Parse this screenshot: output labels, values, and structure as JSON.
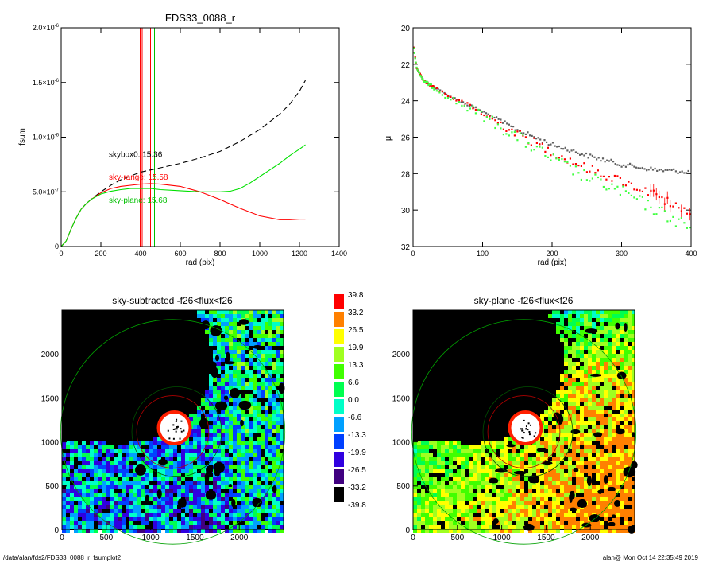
{
  "footer": {
    "path": "/data/alan/fds2/FDS33_0088_r_fsumplot2",
    "stamp": "alan@  Mon Oct 14 22:35:49 2019"
  },
  "colorbar": {
    "labels": [
      "39.8",
      "33.2",
      "26.5",
      "19.9",
      "13.3",
      "6.6",
      "0.0",
      "-6.6",
      "-13.3",
      "-19.9",
      "-26.5",
      "-33.2",
      "-39.8"
    ],
    "colors": [
      "#ff0000",
      "#ff8000",
      "#ffff00",
      "#a0ff20",
      "#40ff00",
      "#00ff50",
      "#00ffc8",
      "#00a0ff",
      "#0040ff",
      "#3000e0",
      "#400080",
      "#000000"
    ]
  },
  "chart_data": [
    {
      "id": "fsum",
      "type": "line",
      "title": "FDS33_0088_r",
      "xlabel": "rad (pix)",
      "ylabel": "fsum",
      "xlim": [
        0,
        1400
      ],
      "ylim": [
        0,
        2e-06
      ],
      "xticks": [
        0,
        200,
        400,
        600,
        800,
        1000,
        1200,
        1400
      ],
      "yticks": [
        {
          "v": 0,
          "base": "0",
          "exp": ""
        },
        {
          "v": 5e-07,
          "base": "5.0×10",
          "exp": "-7"
        },
        {
          "v": 1e-06,
          "base": "1.0×10",
          "exp": "-6"
        },
        {
          "v": 1.5e-06,
          "base": "1.5×10",
          "exp": "-6"
        },
        {
          "v": 2e-06,
          "base": "2.0×10",
          "exp": "-6"
        }
      ],
      "vlines": [
        {
          "x": 398,
          "color": "#ff0000"
        },
        {
          "x": 408,
          "color": "#ff0000"
        },
        {
          "x": 450,
          "color": "#ff0000"
        },
        {
          "x": 470,
          "color": "#00c000"
        }
      ],
      "annotations": [
        {
          "text": "skybox0: 15.36",
          "x": 240,
          "y": 8.2e-07,
          "color": "#000000"
        },
        {
          "text": "sky-range: 15.58",
          "x": 240,
          "y": 6.1e-07,
          "color": "#ff0000"
        },
        {
          "text": "sky-plane: 15.68",
          "x": 240,
          "y": 4e-07,
          "color": "#00c000"
        }
      ],
      "series": [
        {
          "color": "#000000",
          "dash": true,
          "x": [
            0,
            25,
            50,
            75,
            100,
            125,
            150,
            200,
            250,
            300,
            400,
            500,
            600,
            700,
            800,
            900,
            1000,
            1100,
            1150,
            1200,
            1230
          ],
          "y": [
            0,
            5e-08,
            1.6e-07,
            2.6e-07,
            3.4e-07,
            3.9e-07,
            4.3e-07,
            5e-07,
            5.6e-07,
            6.1e-07,
            6.8e-07,
            7.2e-07,
            7.6e-07,
            8.1e-07,
            8.7e-07,
            9.6e-07,
            1.07e-06,
            1.21e-06,
            1.3e-06,
            1.42e-06,
            1.52e-06
          ]
        },
        {
          "color": "#ff0000",
          "dash": false,
          "x": [
            0,
            25,
            50,
            75,
            100,
            125,
            150,
            200,
            250,
            300,
            350,
            400,
            450,
            500,
            600,
            700,
            800,
            900,
            1000,
            1100,
            1150,
            1200,
            1230
          ],
          "y": [
            0,
            5e-08,
            1.6e-07,
            2.6e-07,
            3.4e-07,
            3.9e-07,
            4.3e-07,
            4.9e-07,
            5.3e-07,
            5.5e-07,
            5.6e-07,
            5.7e-07,
            5.75e-07,
            5.7e-07,
            5.5e-07,
            5e-07,
            4.3e-07,
            3.5e-07,
            2.8e-07,
            2.45e-07,
            2.45e-07,
            2.5e-07,
            2.5e-07
          ]
        },
        {
          "color": "#00e000",
          "dash": false,
          "x": [
            0,
            25,
            50,
            75,
            100,
            125,
            150,
            200,
            250,
            300,
            350,
            400,
            450,
            500,
            600,
            700,
            800,
            850,
            900,
            950,
            1000,
            1050,
            1100,
            1150,
            1200,
            1230
          ],
          "y": [
            0,
            5e-08,
            1.6e-07,
            2.6e-07,
            3.4e-07,
            3.9e-07,
            4.3e-07,
            4.8e-07,
            5.05e-07,
            5.2e-07,
            5.3e-07,
            5.3e-07,
            5.3e-07,
            5.2e-07,
            5.1e-07,
            5e-07,
            5e-07,
            5.05e-07,
            5.3e-07,
            5.8e-07,
            6.4e-07,
            7e-07,
            7.6e-07,
            8.3e-07,
            8.9e-07,
            9.3e-07
          ]
        }
      ]
    },
    {
      "id": "profile",
      "type": "scatter",
      "title": "",
      "xlabel": "rad (pix)",
      "ylabel": "μ",
      "xlim": [
        0,
        400
      ],
      "ylim": [
        32,
        20
      ],
      "xticks": [
        0,
        100,
        200,
        300,
        400
      ],
      "yticks": [
        20,
        22,
        24,
        26,
        28,
        30,
        32
      ],
      "series": [
        {
          "color": "#606060",
          "profile": [
            [
              0,
              20.8
            ],
            [
              5,
              22.2
            ],
            [
              15,
              22.9
            ],
            [
              50,
              23.7
            ],
            [
              100,
              24.6
            ],
            [
              150,
              25.6
            ],
            [
              200,
              26.4
            ],
            [
              250,
              27.0
            ],
            [
              300,
              27.5
            ],
            [
              350,
              27.8
            ],
            [
              400,
              27.9
            ]
          ],
          "step": 3,
          "scatter": 0.12
        },
        {
          "color": "#ff0000",
          "profile": [
            [
              0,
              20.8
            ],
            [
              5,
              22.2
            ],
            [
              15,
              22.9
            ],
            [
              50,
              23.7
            ],
            [
              100,
              24.7
            ],
            [
              150,
              25.8
            ],
            [
              200,
              26.8
            ],
            [
              250,
              27.7
            ],
            [
              300,
              28.4
            ],
            [
              350,
              29.2
            ],
            [
              400,
              30.3
            ]
          ],
          "step": 4,
          "scatter": 0.25
        },
        {
          "color": "#40ff40",
          "profile": [
            [
              0,
              20.8
            ],
            [
              5,
              22.2
            ],
            [
              15,
              22.9
            ],
            [
              50,
              23.8
            ],
            [
              100,
              24.8
            ],
            [
              150,
              26.0
            ],
            [
              200,
              27.2
            ],
            [
              250,
              28.2
            ],
            [
              300,
              29.0
            ],
            [
              350,
              30.0
            ],
            [
              400,
              31.0
            ]
          ],
          "step": 4,
          "scatter": 0.35
        }
      ]
    },
    {
      "id": "map1",
      "type": "heatmap",
      "title": "sky-subtracted -f26<flux<f26",
      "xlim": [
        0,
        2500
      ],
      "ylim": [
        0,
        2500
      ],
      "xticks": [
        0,
        500,
        1000,
        1500,
        2000
      ],
      "yticks": [
        0,
        500,
        1000,
        1500,
        2000
      ],
      "trend": "subtracted"
    },
    {
      "id": "map2",
      "type": "heatmap",
      "title": "sky-plane -f26<flux<f26",
      "xlim": [
        0,
        2500
      ],
      "ylim": [
        0,
        2500
      ],
      "xticks": [
        0,
        500,
        1000,
        1500,
        2000
      ],
      "yticks": [
        0,
        500,
        1000,
        1500,
        2000
      ],
      "trend": "plane"
    }
  ]
}
